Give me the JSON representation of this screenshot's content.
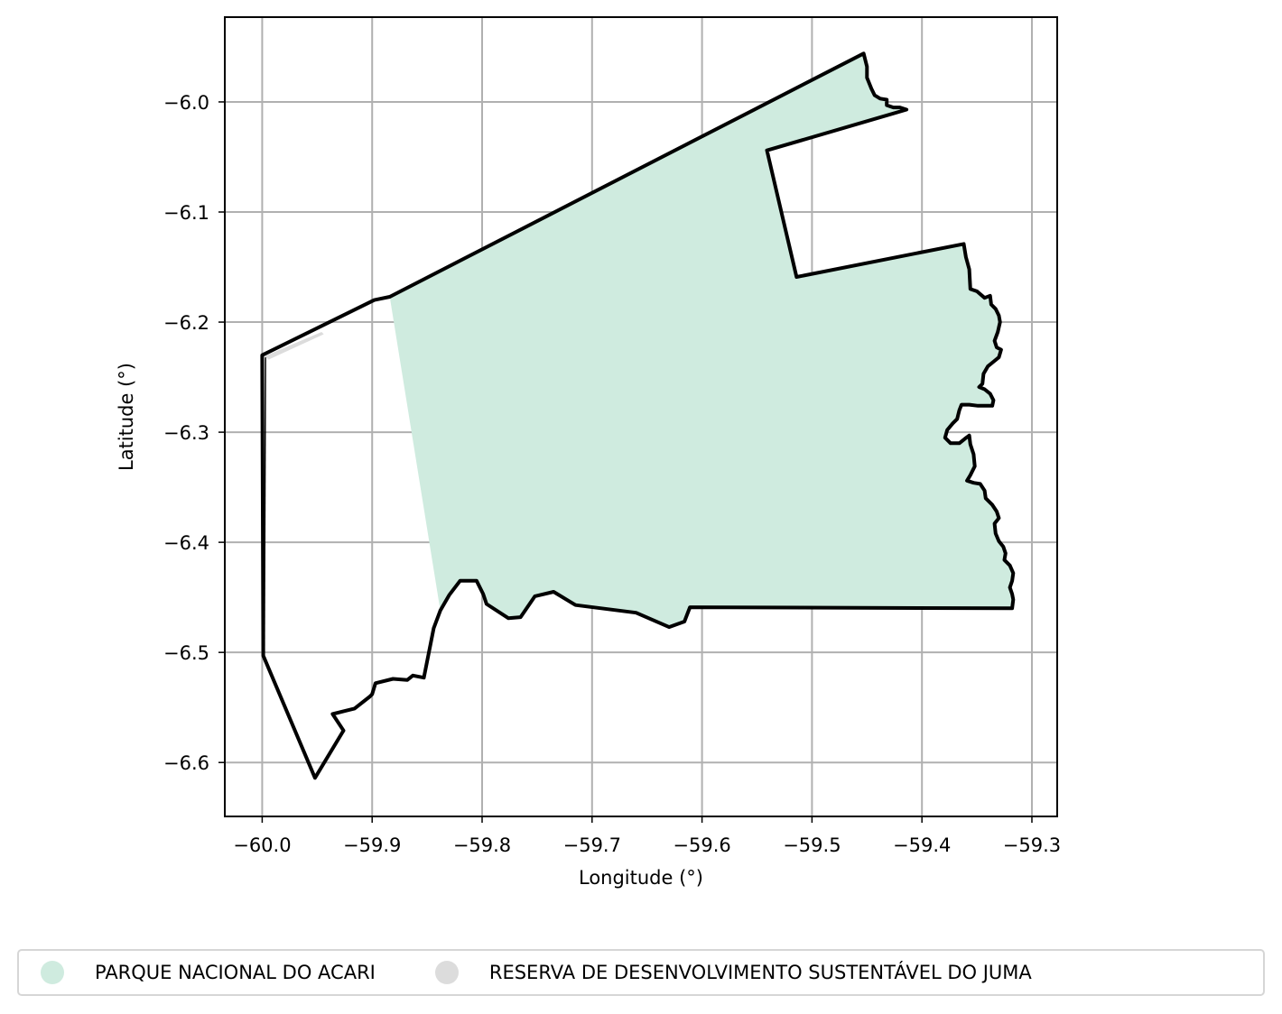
{
  "map": {
    "xlabel": "Longitude (°)",
    "ylabel": "Latitude (°)",
    "xlim": [
      -60.034,
      -59.277
    ],
    "ylim": [
      -6.649,
      -5.923
    ],
    "grid": true,
    "xticks": [
      -60.0,
      -59.9,
      -59.8,
      -59.7,
      -59.6,
      -59.5,
      -59.4,
      -59.3
    ],
    "xtick_labels": [
      "−60.0",
      "−59.9",
      "−59.8",
      "−59.7",
      "−59.6",
      "−59.5",
      "−59.4",
      "−59.3"
    ],
    "yticks": [
      -6.0,
      -6.1,
      -6.2,
      -6.3,
      -6.4,
      -6.5,
      -6.6
    ],
    "ytick_labels": [
      "−6.0",
      "−6.1",
      "−6.2",
      "−6.3",
      "−6.4",
      "−6.5",
      "−6.6"
    ],
    "legend_position": "bottom-center",
    "colors": {
      "parque_fill": "#cfebdf",
      "reserva_fill": "#dcdcdc",
      "outline": "#000000",
      "grid": "#b0b0b0"
    }
  },
  "legend": {
    "items": [
      {
        "label": "PARQUE NACIONAL DO ACARI",
        "color": "#cfebdf"
      },
      {
        "label": "RESERVA DE DESENVOLVIMENTO SUSTENTÁVEL DO JUMA",
        "color": "#dcdcdc"
      }
    ]
  },
  "features": {
    "parque_nacional_do_acari": [
      [
        -59.884,
        -6.177
      ],
      [
        -59.453,
        -5.956
      ],
      [
        -59.45,
        -5.968
      ],
      [
        -59.45,
        -5.978
      ],
      [
        -59.446,
        -5.988
      ],
      [
        -59.443,
        -5.994
      ],
      [
        -59.438,
        -5.997
      ],
      [
        -59.432,
        -5.998
      ],
      [
        -59.432,
        -6.003
      ],
      [
        -59.426,
        -6.005
      ],
      [
        -59.42,
        -6.005
      ],
      [
        -59.414,
        -6.007
      ],
      [
        -59.541,
        -6.044
      ],
      [
        -59.514,
        -6.159
      ],
      [
        -59.362,
        -6.129
      ],
      [
        -59.36,
        -6.141
      ],
      [
        -59.357,
        -6.152
      ],
      [
        -59.356,
        -6.17
      ],
      [
        -59.35,
        -6.172
      ],
      [
        -59.343,
        -6.178
      ],
      [
        -59.338,
        -6.176
      ],
      [
        -59.337,
        -6.184
      ],
      [
        -59.333,
        -6.188
      ],
      [
        -59.33,
        -6.194
      ],
      [
        -59.329,
        -6.2
      ],
      [
        -59.331,
        -6.209
      ],
      [
        -59.334,
        -6.217
      ],
      [
        -59.332,
        -6.223
      ],
      [
        -59.328,
        -6.225
      ],
      [
        -59.33,
        -6.232
      ],
      [
        -59.335,
        -6.236
      ],
      [
        -59.34,
        -6.24
      ],
      [
        -59.344,
        -6.247
      ],
      [
        -59.345,
        -6.256
      ],
      [
        -59.348,
        -6.259
      ],
      [
        -59.343,
        -6.261
      ],
      [
        -59.338,
        -6.265
      ],
      [
        -59.335,
        -6.271
      ],
      [
        -59.336,
        -6.276
      ],
      [
        -59.342,
        -6.276
      ],
      [
        -59.349,
        -6.276
      ],
      [
        -59.357,
        -6.275
      ],
      [
        -59.364,
        -6.275
      ],
      [
        -59.366,
        -6.28
      ],
      [
        -59.368,
        -6.288
      ],
      [
        -59.372,
        -6.292
      ],
      [
        -59.377,
        -6.298
      ],
      [
        -59.379,
        -6.305
      ],
      [
        -59.374,
        -6.31
      ],
      [
        -59.366,
        -6.31
      ],
      [
        -59.361,
        -6.306
      ],
      [
        -59.357,
        -6.303
      ],
      [
        -59.356,
        -6.311
      ],
      [
        -59.353,
        -6.32
      ],
      [
        -59.352,
        -6.331
      ],
      [
        -59.356,
        -6.339
      ],
      [
        -59.359,
        -6.344
      ],
      [
        -59.353,
        -6.346
      ],
      [
        -59.347,
        -6.347
      ],
      [
        -59.343,
        -6.353
      ],
      [
        -59.342,
        -6.36
      ],
      [
        -59.336,
        -6.366
      ],
      [
        -59.332,
        -6.372
      ],
      [
        -59.33,
        -6.378
      ],
      [
        -59.334,
        -6.383
      ],
      [
        -59.333,
        -6.392
      ],
      [
        -59.33,
        -6.399
      ],
      [
        -59.326,
        -6.404
      ],
      [
        -59.324,
        -6.41
      ],
      [
        -59.325,
        -6.416
      ],
      [
        -59.32,
        -6.421
      ],
      [
        -59.317,
        -6.428
      ],
      [
        -59.318,
        -6.435
      ],
      [
        -59.32,
        -6.441
      ],
      [
        -59.318,
        -6.447
      ],
      [
        -59.317,
        -6.452
      ],
      [
        -59.318,
        -6.46
      ],
      [
        -59.611,
        -6.459
      ],
      [
        -59.616,
        -6.472
      ],
      [
        -59.63,
        -6.477
      ],
      [
        -59.66,
        -6.464
      ],
      [
        -59.715,
        -6.457
      ],
      [
        -59.735,
        -6.445
      ],
      [
        -59.752,
        -6.449
      ],
      [
        -59.765,
        -6.468
      ],
      [
        -59.776,
        -6.469
      ],
      [
        -59.796,
        -6.456
      ],
      [
        -59.799,
        -6.447
      ],
      [
        -59.805,
        -6.435
      ],
      [
        -59.82,
        -6.435
      ],
      [
        -59.83,
        -6.448
      ],
      [
        -59.838,
        -6.462
      ]
    ],
    "parque_outline": [
      [
        -59.898,
        -6.18
      ],
      [
        -59.884,
        -6.177
      ],
      [
        -59.453,
        -5.956
      ],
      [
        -59.45,
        -5.968
      ],
      [
        -59.45,
        -5.978
      ],
      [
        -59.446,
        -5.988
      ],
      [
        -59.443,
        -5.994
      ],
      [
        -59.438,
        -5.997
      ],
      [
        -59.432,
        -5.998
      ],
      [
        -59.432,
        -6.003
      ],
      [
        -59.426,
        -6.005
      ],
      [
        -59.42,
        -6.005
      ],
      [
        -59.414,
        -6.007
      ],
      [
        -59.541,
        -6.044
      ],
      [
        -59.514,
        -6.159
      ],
      [
        -59.362,
        -6.129
      ],
      [
        -59.36,
        -6.141
      ],
      [
        -59.357,
        -6.152
      ],
      [
        -59.356,
        -6.17
      ],
      [
        -59.35,
        -6.172
      ],
      [
        -59.343,
        -6.178
      ],
      [
        -59.338,
        -6.176
      ],
      [
        -59.337,
        -6.184
      ],
      [
        -59.333,
        -6.188
      ],
      [
        -59.33,
        -6.194
      ],
      [
        -59.329,
        -6.2
      ],
      [
        -59.331,
        -6.209
      ],
      [
        -59.334,
        -6.217
      ],
      [
        -59.332,
        -6.223
      ],
      [
        -59.328,
        -6.225
      ],
      [
        -59.33,
        -6.232
      ],
      [
        -59.335,
        -6.236
      ],
      [
        -59.34,
        -6.24
      ],
      [
        -59.344,
        -6.247
      ],
      [
        -59.345,
        -6.256
      ],
      [
        -59.348,
        -6.259
      ],
      [
        -59.343,
        -6.261
      ],
      [
        -59.338,
        -6.265
      ],
      [
        -59.335,
        -6.271
      ],
      [
        -59.336,
        -6.276
      ],
      [
        -59.342,
        -6.276
      ],
      [
        -59.349,
        -6.276
      ],
      [
        -59.357,
        -6.275
      ],
      [
        -59.364,
        -6.275
      ],
      [
        -59.366,
        -6.28
      ],
      [
        -59.368,
        -6.288
      ],
      [
        -59.372,
        -6.292
      ],
      [
        -59.377,
        -6.298
      ],
      [
        -59.379,
        -6.305
      ],
      [
        -59.374,
        -6.31
      ],
      [
        -59.366,
        -6.31
      ],
      [
        -59.361,
        -6.306
      ],
      [
        -59.357,
        -6.303
      ],
      [
        -59.356,
        -6.311
      ],
      [
        -59.353,
        -6.32
      ],
      [
        -59.352,
        -6.331
      ],
      [
        -59.356,
        -6.339
      ],
      [
        -59.359,
        -6.344
      ],
      [
        -59.353,
        -6.346
      ],
      [
        -59.347,
        -6.347
      ],
      [
        -59.343,
        -6.353
      ],
      [
        -59.342,
        -6.36
      ],
      [
        -59.336,
        -6.366
      ],
      [
        -59.332,
        -6.372
      ],
      [
        -59.33,
        -6.378
      ],
      [
        -59.334,
        -6.383
      ],
      [
        -59.333,
        -6.392
      ],
      [
        -59.33,
        -6.399
      ],
      [
        -59.326,
        -6.404
      ],
      [
        -59.324,
        -6.41
      ],
      [
        -59.325,
        -6.416
      ],
      [
        -59.32,
        -6.421
      ],
      [
        -59.317,
        -6.428
      ],
      [
        -59.318,
        -6.435
      ],
      [
        -59.32,
        -6.441
      ],
      [
        -59.318,
        -6.447
      ],
      [
        -59.317,
        -6.452
      ],
      [
        -59.318,
        -6.46
      ],
      [
        -59.611,
        -6.459
      ],
      [
        -59.616,
        -6.472
      ],
      [
        -59.63,
        -6.477
      ],
      [
        -59.66,
        -6.464
      ],
      [
        -59.715,
        -6.457
      ],
      [
        -59.735,
        -6.445
      ],
      [
        -59.752,
        -6.449
      ],
      [
        -59.765,
        -6.468
      ],
      [
        -59.776,
        -6.469
      ],
      [
        -59.796,
        -6.456
      ],
      [
        -59.799,
        -6.447
      ],
      [
        -59.805,
        -6.435
      ],
      [
        -59.82,
        -6.435
      ],
      [
        -59.83,
        -6.448
      ],
      [
        -59.838,
        -6.462
      ],
      [
        -59.844,
        -6.478
      ],
      [
        -59.853,
        -6.523
      ],
      [
        -59.863,
        -6.521
      ],
      [
        -59.868,
        -6.525
      ],
      [
        -59.881,
        -6.524
      ],
      [
        -59.897,
        -6.528
      ],
      [
        -59.9,
        -6.538
      ],
      [
        -59.902,
        -6.54
      ],
      [
        -59.916,
        -6.551
      ],
      [
        -59.936,
        -6.556
      ],
      [
        -59.926,
        -6.571
      ],
      [
        -59.952,
        -6.614
      ],
      [
        -59.999,
        -6.503
      ],
      [
        -60.0,
        -6.23
      ],
      [
        -59.898,
        -6.18
      ]
    ],
    "reserva_do_juma_fragment": [
      [
        -59.998,
        -6.231
      ],
      [
        -59.946,
        -6.209
      ],
      [
        -59.944,
        -6.211
      ],
      [
        -59.994,
        -6.234
      ]
    ],
    "reserva_thin_edge": [
      [
        -59.997,
        -6.232
      ],
      [
        -59.998,
        -6.5
      ]
    ]
  }
}
